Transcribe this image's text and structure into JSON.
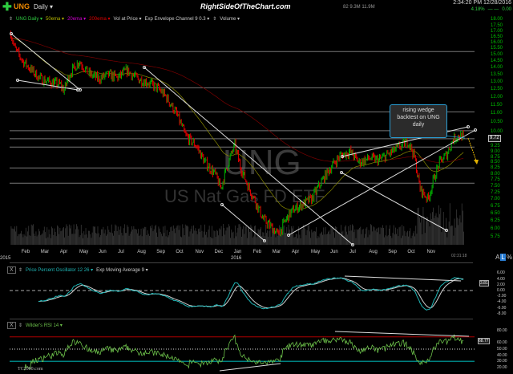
{
  "header": {
    "symbol": "UNG",
    "timeframe": "Daily ▾",
    "site_title": "RightSideOfTheChart.com",
    "volume_stats": "82  9.3M  11.9M",
    "timestamp": "2:34:20 PM 12/28/2016",
    "change_pct": "4.18%",
    "change_dashes": "— —",
    "change_value": "0.00"
  },
  "indicators_bar": {
    "main": "UNG Daily ▾",
    "ema50": "50ema ▾",
    "ema20": "20ema ▾",
    "ema200": "200ema ▾",
    "vol_at_price": "Vol at Price ▾",
    "envelope": "Exp Envelope Channel 9 0.3 ▾",
    "volume": "Volume ▾"
  },
  "watermark": {
    "symbol": "UNG",
    "name": "US Nat Gas FD ETF"
  },
  "annotation": {
    "line1": "rising wedge",
    "line2": "backtest on UNG",
    "line3": "daily"
  },
  "price_axis": {
    "top_label": "18.00",
    "labels": [
      "17.50",
      "17.00",
      "16.50",
      "16.00",
      "15.50",
      "15.00",
      "14.50",
      "14.00",
      "13.50",
      "13.00",
      "12.50",
      "12.00",
      "11.50",
      "11.00",
      "10.50",
      "10.00",
      "9.25",
      "9.00",
      "8.75",
      "8.50",
      "8.25",
      "8.00",
      "7.75",
      "7.50",
      "7.25",
      "7.00",
      "6.75",
      "6.50",
      "6.25",
      "6.00",
      "5.75"
    ],
    "last_price": "9.72",
    "scale": "log",
    "scale_buttons": [
      "A",
      "L",
      "%"
    ]
  },
  "date_axis": {
    "months": [
      "Feb",
      "Mar",
      "Apr",
      "May",
      "Jun",
      "Jul",
      "Aug",
      "Sep",
      "Oct",
      "Nov",
      "Dec",
      "Jan",
      "Feb",
      "Mar",
      "Apr",
      "May",
      "Jun",
      "Jul",
      "Aug",
      "Sep",
      "Oct",
      "Nov"
    ],
    "year_start": "2015",
    "year_mid": "2016",
    "clock": "02:31:18"
  },
  "ppo_panel": {
    "close": "X",
    "title": "Price Percent Oscillator 12 26 ▾",
    "signal": "Exp Moving Average 9 ▾",
    "axis": [
      "6.00",
      "4.00",
      "2.00",
      "0.00",
      "-2.00",
      "-4.00",
      "-6.00",
      "-8.00"
    ],
    "last_value": "3.81"
  },
  "rsi_panel": {
    "close": "X",
    "title": "Wilder's RSI 14 ▾",
    "axis": [
      "80.00",
      "60.00",
      "50.00",
      "40.00",
      "30.00",
      "20.00"
    ],
    "last_value": "68.77",
    "footer": "TC2000.com"
  },
  "colors": {
    "up": "#00b000",
    "down": "#e00000",
    "axis_text": "#00c000",
    "ppo": "#1fb5b5",
    "ppo_signal": "#d0d0d0",
    "rsi": "#6cc04a",
    "overbought": "#b00000",
    "oversold": "#008080",
    "annotation_border": "#2a9fd6",
    "arrow": "#e0b000"
  },
  "chart_data": {
    "type": "candlestick",
    "scale": "log",
    "ylim": [
      5.75,
      18.0
    ],
    "x_range": [
      "2015-01",
      "2016-12-28"
    ],
    "approx_prices": [
      [
        "2015-01-13",
        16.8
      ],
      [
        "2015-01-19",
        15.5
      ],
      [
        "2015-02-01",
        14.5
      ],
      [
        "2015-02-15",
        13.8
      ],
      [
        "2015-03-01",
        13.2
      ],
      [
        "2015-03-15",
        13.0
      ],
      [
        "2015-04-01",
        12.8
      ],
      [
        "2015-04-07",
        12.4
      ],
      [
        "2015-04-15",
        13.5
      ],
      [
        "2015-05-01",
        14.5
      ],
      [
        "2015-05-15",
        13.6
      ],
      [
        "2015-06-01",
        13.2
      ],
      [
        "2015-06-15",
        13.5
      ],
      [
        "2015-07-01",
        13.3
      ],
      [
        "2015-07-15",
        13.8
      ],
      [
        "2015-08-01",
        13.2
      ],
      [
        "2015-08-15",
        13.0
      ],
      [
        "2015-09-01",
        12.6
      ],
      [
        "2015-09-15",
        12.0
      ],
      [
        "2015-10-01",
        11.0
      ],
      [
        "2015-10-15",
        9.8
      ],
      [
        "2015-11-01",
        9.3
      ],
      [
        "2015-11-15",
        8.5
      ],
      [
        "2015-12-01",
        8.0
      ],
      [
        "2015-12-10",
        7.4
      ],
      [
        "2015-12-22",
        8.5
      ],
      [
        "2016-01-01",
        9.3
      ],
      [
        "2016-01-10",
        8.3
      ],
      [
        "2016-01-22",
        7.5
      ],
      [
        "2016-02-01",
        7.0
      ],
      [
        "2016-02-15",
        6.3
      ],
      [
        "2016-03-01",
        6.0
      ],
      [
        "2016-03-10",
        5.8
      ],
      [
        "2016-03-22",
        6.3
      ],
      [
        "2016-04-01",
        6.6
      ],
      [
        "2016-04-15",
        6.8
      ],
      [
        "2016-05-01",
        7.0
      ],
      [
        "2016-05-15",
        7.6
      ],
      [
        "2016-06-01",
        8.3
      ],
      [
        "2016-06-15",
        8.8
      ],
      [
        "2016-07-01",
        9.0
      ],
      [
        "2016-07-15",
        8.5
      ],
      [
        "2016-08-01",
        8.7
      ],
      [
        "2016-08-15",
        8.6
      ],
      [
        "2016-09-01",
        8.9
      ],
      [
        "2016-09-15",
        9.2
      ],
      [
        "2016-10-01",
        9.5
      ],
      [
        "2016-10-10",
        8.8
      ],
      [
        "2016-10-19",
        7.4
      ],
      [
        "2016-11-01",
        7.0
      ],
      [
        "2016-11-10",
        7.8
      ],
      [
        "2016-11-19",
        8.5
      ],
      [
        "2016-12-01",
        8.9
      ],
      [
        "2016-12-10",
        9.6
      ],
      [
        "2016-12-19",
        9.8
      ],
      [
        "2016-12-28",
        9.72
      ]
    ],
    "horizontal_levels": [
      15.25,
      12.6,
      11.1,
      10.05,
      9.63,
      9.22,
      8.26,
      7.62
    ],
    "ppo": {
      "params": [
        12,
        26
      ],
      "signal_ema": 9,
      "ylim": [
        -8,
        6
      ],
      "zero_line": 0
    },
    "rsi": {
      "period": 14,
      "ylim": [
        15,
        85
      ],
      "overbought": 70,
      "midline": 50,
      "oversold": 30
    }
  }
}
